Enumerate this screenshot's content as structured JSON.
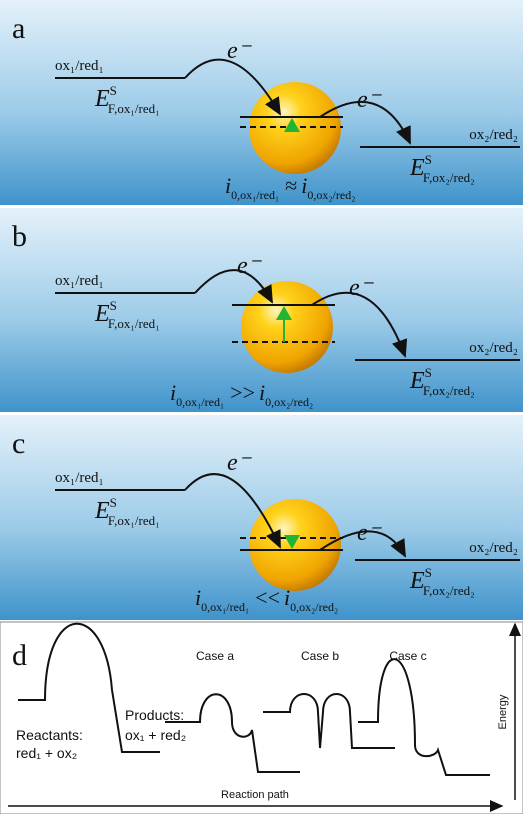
{
  "panels": [
    {
      "label": "a",
      "left_couple": "ox₁/red₁",
      "left_level": {
        "symbol": "E",
        "sup": "S",
        "sub": "F,ox₁/red₁"
      },
      "electron_in": "e⁻",
      "electron_out": "e⁻",
      "right_couple": "ox₂/red₂",
      "right_level": {
        "symbol": "E",
        "sup": "S",
        "sub": "F,ox₂/red₂"
      },
      "relation": {
        "left_symbol": "i",
        "left_sub": "0,ox₁/red₁",
        "operator": "≈",
        "right_symbol": "i",
        "right_sub": "0,ox₂/red₂"
      }
    },
    {
      "label": "b",
      "left_couple": "ox₁/red₁",
      "left_level": {
        "symbol": "E",
        "sup": "S",
        "sub": "F,ox₁/red₁"
      },
      "electron_in": "e⁻",
      "electron_out": "e⁻",
      "right_couple": "ox₂/red₂",
      "right_level": {
        "symbol": "E",
        "sup": "S",
        "sub": "F,ox₂/red₂"
      },
      "relation": {
        "left_symbol": "i",
        "left_sub": "0,ox₁/red₁",
        "operator": ">>",
        "right_symbol": "i",
        "right_sub": "0,ox₂/red₂"
      }
    },
    {
      "label": "c",
      "left_couple": "ox₁/red₁",
      "left_level": {
        "symbol": "E",
        "sup": "S",
        "sub": "F,ox₁/red₁"
      },
      "electron_in": "e⁻",
      "electron_out": "e⁻",
      "right_couple": "ox₂/red₂",
      "right_level": {
        "symbol": "E",
        "sup": "S",
        "sub": "F,ox₂/red₂"
      },
      "relation": {
        "left_symbol": "i",
        "left_sub": "0,ox₁/red₁",
        "operator": "<<",
        "right_symbol": "i",
        "right_sub": "0,ox₂/red₂"
      }
    }
  ],
  "panel_d": {
    "label": "d",
    "cases": [
      "Case a",
      "Case b",
      "Case c"
    ],
    "reactants": [
      "Reactants:",
      "red₁ + ox₂"
    ],
    "products": [
      "Products:",
      "ox₁ + red₂"
    ],
    "y_axis": "Energy",
    "x_axis": "Reaction path"
  }
}
